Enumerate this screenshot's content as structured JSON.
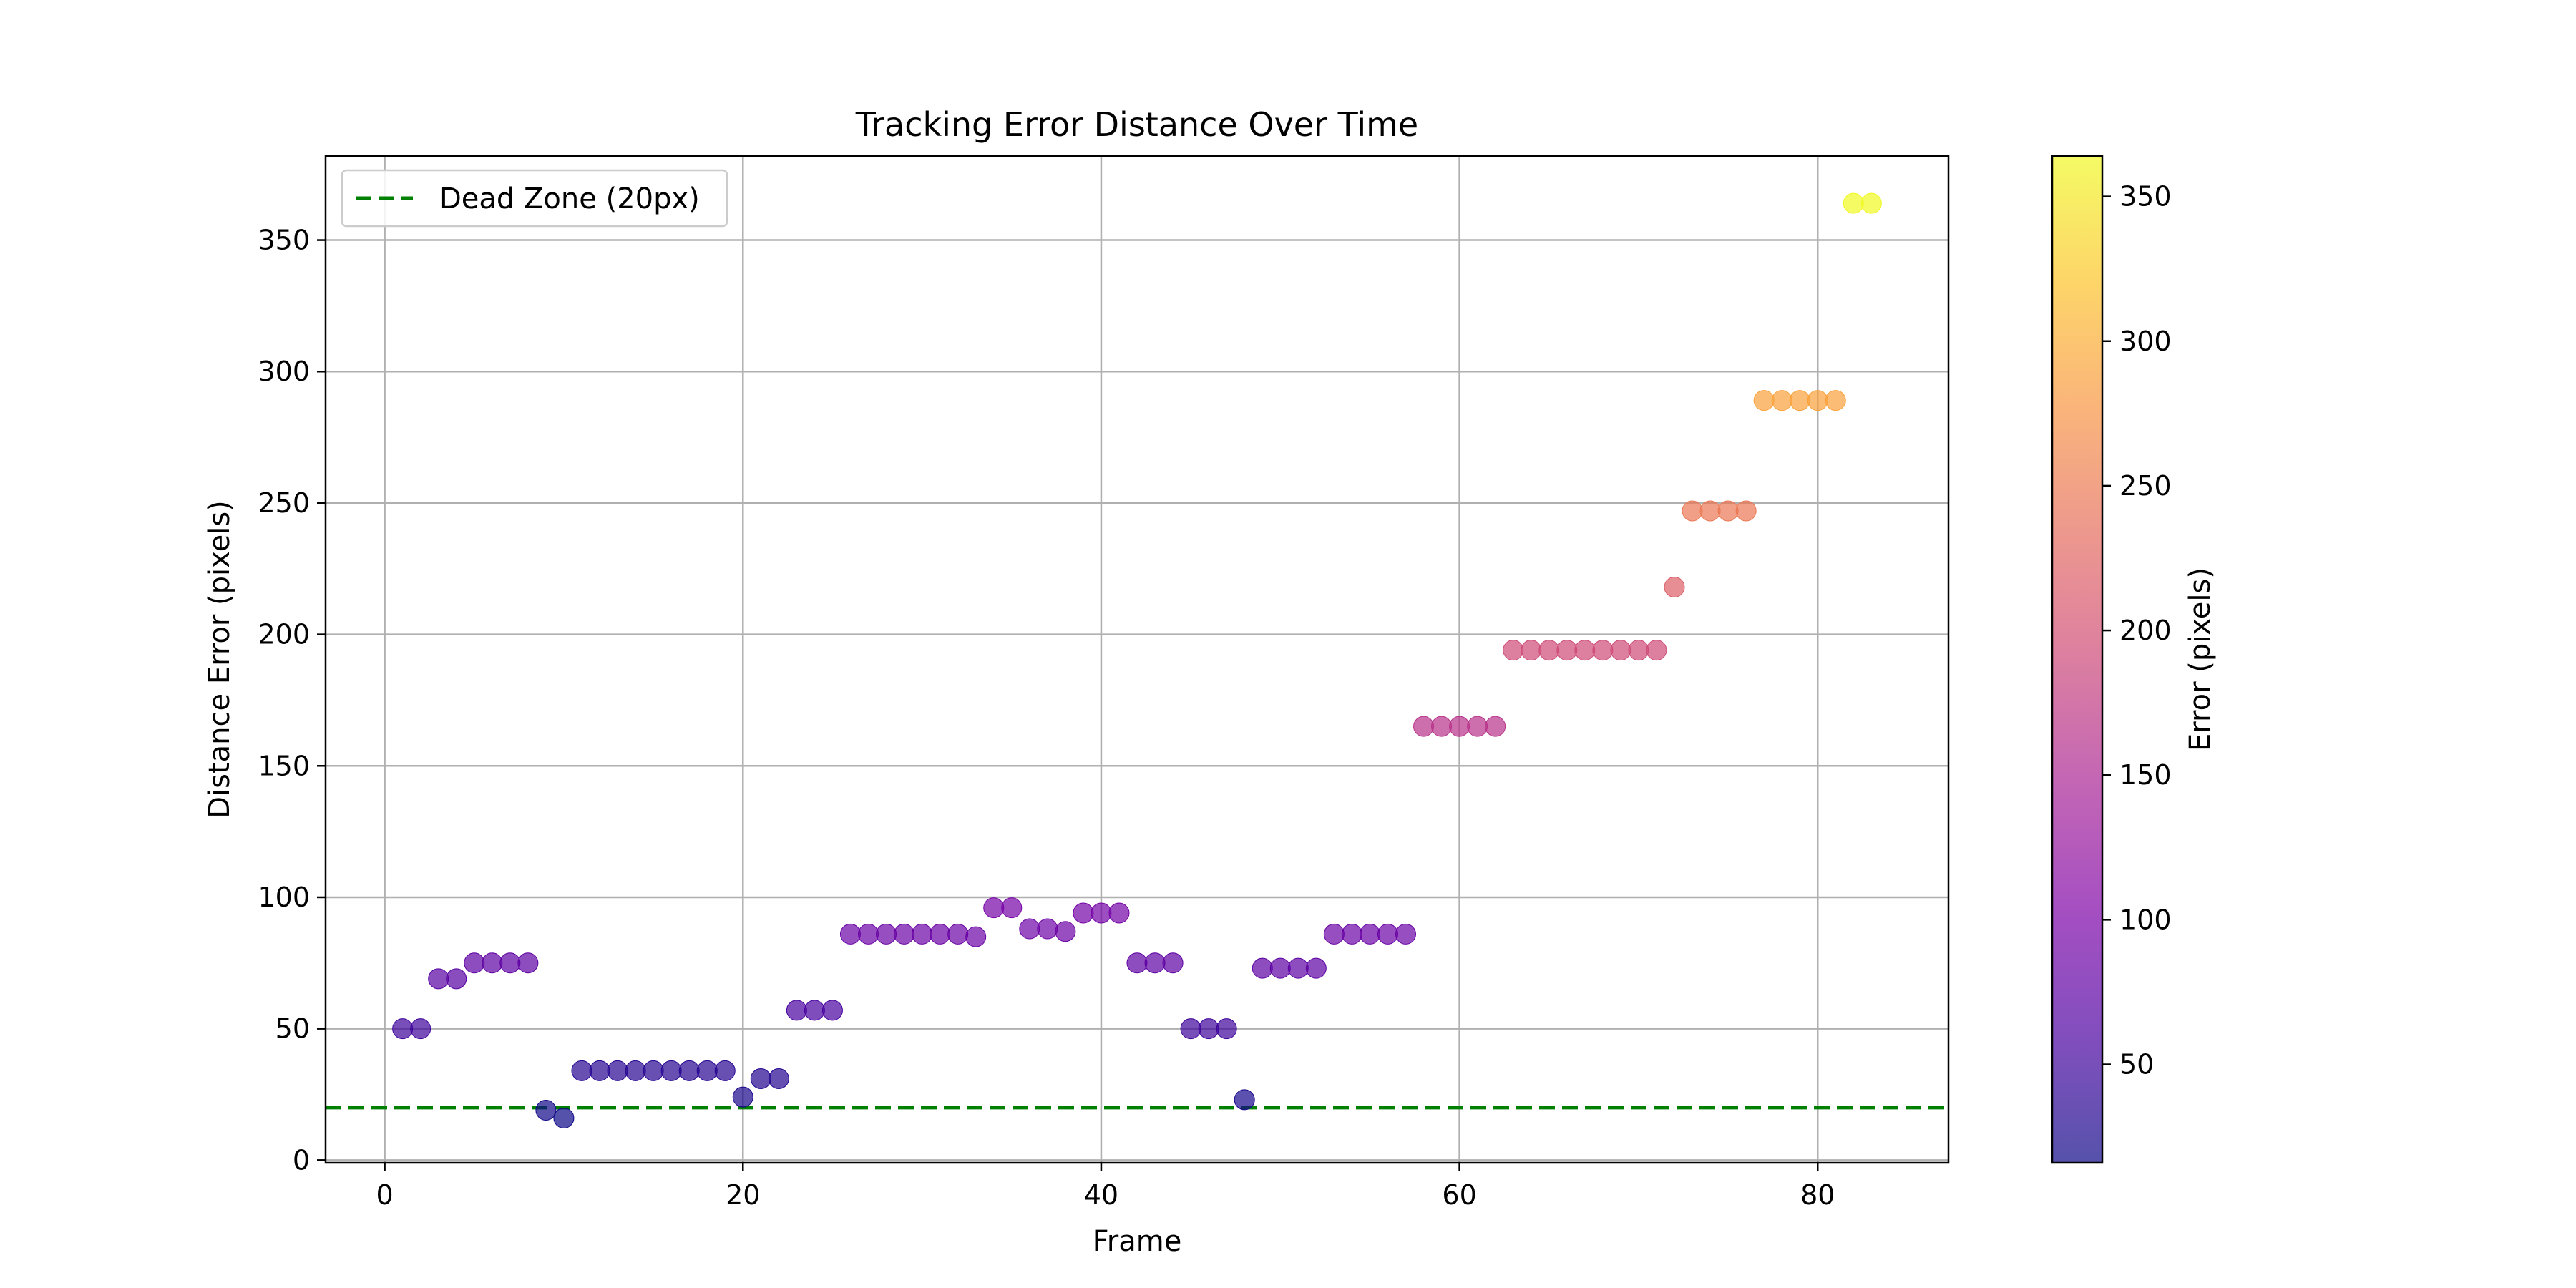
{
  "chart_data": {
    "type": "scatter",
    "title": "Tracking Error Distance Over Time",
    "xlabel": "Frame",
    "ylabel": "Distance Error (pixels)",
    "xlim": [
      -3.3,
      87.3
    ],
    "ylim": [
      -1,
      382
    ],
    "x_ticks": [
      0,
      20,
      40,
      60,
      80
    ],
    "y_ticks": [
      0,
      50,
      100,
      150,
      200,
      250,
      300,
      350
    ],
    "grid": true,
    "legend": {
      "placement": "top-left",
      "entries": [
        "Dead Zone (20px)"
      ]
    },
    "reference_line": {
      "label": "Dead Zone (20px)",
      "y": 20,
      "color": "#008000",
      "style": "dashed"
    },
    "colorbar": {
      "label": "Error (pixels)",
      "colormap": "plasma",
      "range": [
        16,
        364
      ],
      "ticks": [
        50,
        100,
        150,
        200,
        250,
        300,
        350
      ]
    },
    "points": {
      "x": [
        1,
        2,
        3,
        4,
        5,
        6,
        7,
        8,
        9,
        10,
        11,
        12,
        13,
        14,
        15,
        16,
        17,
        18,
        19,
        20,
        21,
        22,
        23,
        24,
        25,
        26,
        27,
        28,
        29,
        30,
        31,
        32,
        33,
        34,
        35,
        36,
        37,
        38,
        39,
        40,
        41,
        42,
        43,
        44,
        45,
        46,
        47,
        48,
        49,
        50,
        51,
        52,
        53,
        54,
        55,
        56,
        57,
        58,
        59,
        60,
        61,
        62,
        63,
        64,
        65,
        66,
        67,
        68,
        69,
        70,
        71,
        72,
        73,
        74,
        75,
        76,
        77,
        78,
        79,
        80,
        81,
        82,
        83
      ],
      "y": [
        50,
        50,
        69,
        69,
        75,
        75,
        75,
        75,
        19,
        16,
        34,
        34,
        34,
        34,
        34,
        34,
        34,
        34,
        34,
        24,
        31,
        31,
        57,
        57,
        57,
        86,
        86,
        86,
        86,
        86,
        86,
        86,
        85,
        96,
        96,
        88,
        88,
        87,
        94,
        94,
        94,
        75,
        75,
        75,
        50,
        50,
        50,
        23,
        73,
        73,
        73,
        73,
        86,
        86,
        86,
        86,
        86,
        165,
        165,
        165,
        165,
        165,
        194,
        194,
        194,
        194,
        194,
        194,
        194,
        194,
        194,
        218,
        247,
        247,
        247,
        247,
        289,
        289,
        289,
        289,
        289,
        364,
        364
      ]
    }
  }
}
